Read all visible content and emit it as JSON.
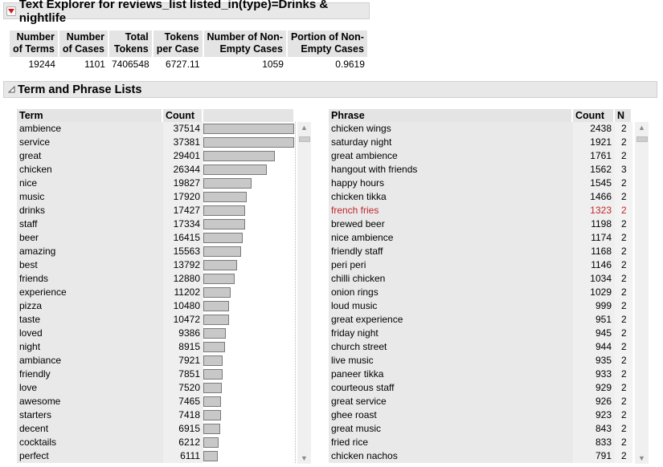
{
  "window": {
    "title": "Text Explorer for reviews_list listed_in(type)=Drinks & nightlife"
  },
  "summary": {
    "headers": [
      [
        "Number",
        "of Terms"
      ],
      [
        "Number",
        "of Cases"
      ],
      [
        "Total",
        "Tokens"
      ],
      [
        "Tokens",
        "per Case"
      ],
      [
        "Number of Non-",
        "Empty Cases"
      ],
      [
        "Portion of Non-",
        "Empty Cases"
      ]
    ],
    "values": [
      "19244",
      "1101",
      "7406548",
      "6727.11",
      "1059",
      "0.9619"
    ]
  },
  "lists_section": {
    "title": "Term and Phrase Lists"
  },
  "term_list": {
    "col_term": "Term",
    "col_count": "Count",
    "max_count": 37514,
    "rows": [
      {
        "term": "ambience",
        "count": 37514
      },
      {
        "term": "service",
        "count": 37381
      },
      {
        "term": "great",
        "count": 29401
      },
      {
        "term": "chicken",
        "count": 26344
      },
      {
        "term": "nice",
        "count": 19827
      },
      {
        "term": "music",
        "count": 17920
      },
      {
        "term": "drinks",
        "count": 17427
      },
      {
        "term": "staff",
        "count": 17334
      },
      {
        "term": "beer",
        "count": 16415
      },
      {
        "term": "amazing",
        "count": 15563
      },
      {
        "term": "best",
        "count": 13792
      },
      {
        "term": "friends",
        "count": 12880
      },
      {
        "term": "experience",
        "count": 11202
      },
      {
        "term": "pizza",
        "count": 10480
      },
      {
        "term": "taste",
        "count": 10472
      },
      {
        "term": "loved",
        "count": 9386
      },
      {
        "term": "night",
        "count": 8915
      },
      {
        "term": "ambiance",
        "count": 7921
      },
      {
        "term": "friendly",
        "count": 7851
      },
      {
        "term": "love",
        "count": 7520
      },
      {
        "term": "awesome",
        "count": 7465
      },
      {
        "term": "starters",
        "count": 7418
      },
      {
        "term": "decent",
        "count": 6915
      },
      {
        "term": "cocktails",
        "count": 6212
      },
      {
        "term": "perfect",
        "count": 6111
      }
    ]
  },
  "phrase_list": {
    "col_phrase": "Phrase",
    "col_count": "Count",
    "col_n": "N",
    "rows": [
      {
        "phrase": "chicken wings",
        "count": "2438",
        "n": "2"
      },
      {
        "phrase": "saturday night",
        "count": "1921",
        "n": "2"
      },
      {
        "phrase": "great ambience",
        "count": "1761",
        "n": "2"
      },
      {
        "phrase": "hangout with friends",
        "count": "1562",
        "n": "3"
      },
      {
        "phrase": "happy hours",
        "count": "1545",
        "n": "2"
      },
      {
        "phrase": "chicken tikka",
        "count": "1466",
        "n": "2"
      },
      {
        "phrase": "french fries",
        "count": "1323",
        "n": "2",
        "highlight": true
      },
      {
        "phrase": "brewed beer",
        "count": "1198",
        "n": "2"
      },
      {
        "phrase": "nice ambience",
        "count": "1174",
        "n": "2"
      },
      {
        "phrase": "friendly staff",
        "count": "1168",
        "n": "2"
      },
      {
        "phrase": "peri peri",
        "count": "1146",
        "n": "2"
      },
      {
        "phrase": "chilli chicken",
        "count": "1034",
        "n": "2"
      },
      {
        "phrase": "onion rings",
        "count": "1029",
        "n": "2"
      },
      {
        "phrase": "loud music",
        "count": "999",
        "n": "2"
      },
      {
        "phrase": "great experience",
        "count": "951",
        "n": "2"
      },
      {
        "phrase": "friday night",
        "count": "945",
        "n": "2"
      },
      {
        "phrase": "church street",
        "count": "944",
        "n": "2"
      },
      {
        "phrase": "live music",
        "count": "935",
        "n": "2"
      },
      {
        "phrase": "paneer tikka",
        "count": "933",
        "n": "2"
      },
      {
        "phrase": "courteous staff",
        "count": "929",
        "n": "2"
      },
      {
        "phrase": "great service",
        "count": "926",
        "n": "2"
      },
      {
        "phrase": "ghee roast",
        "count": "923",
        "n": "2"
      },
      {
        "phrase": "great music",
        "count": "843",
        "n": "2"
      },
      {
        "phrase": "fried rice",
        "count": "833",
        "n": "2"
      },
      {
        "phrase": "chicken nachos",
        "count": "791",
        "n": "2"
      }
    ]
  },
  "colors": {
    "disclosure_red": "#d4161c",
    "highlight_text": "#c0262c"
  }
}
